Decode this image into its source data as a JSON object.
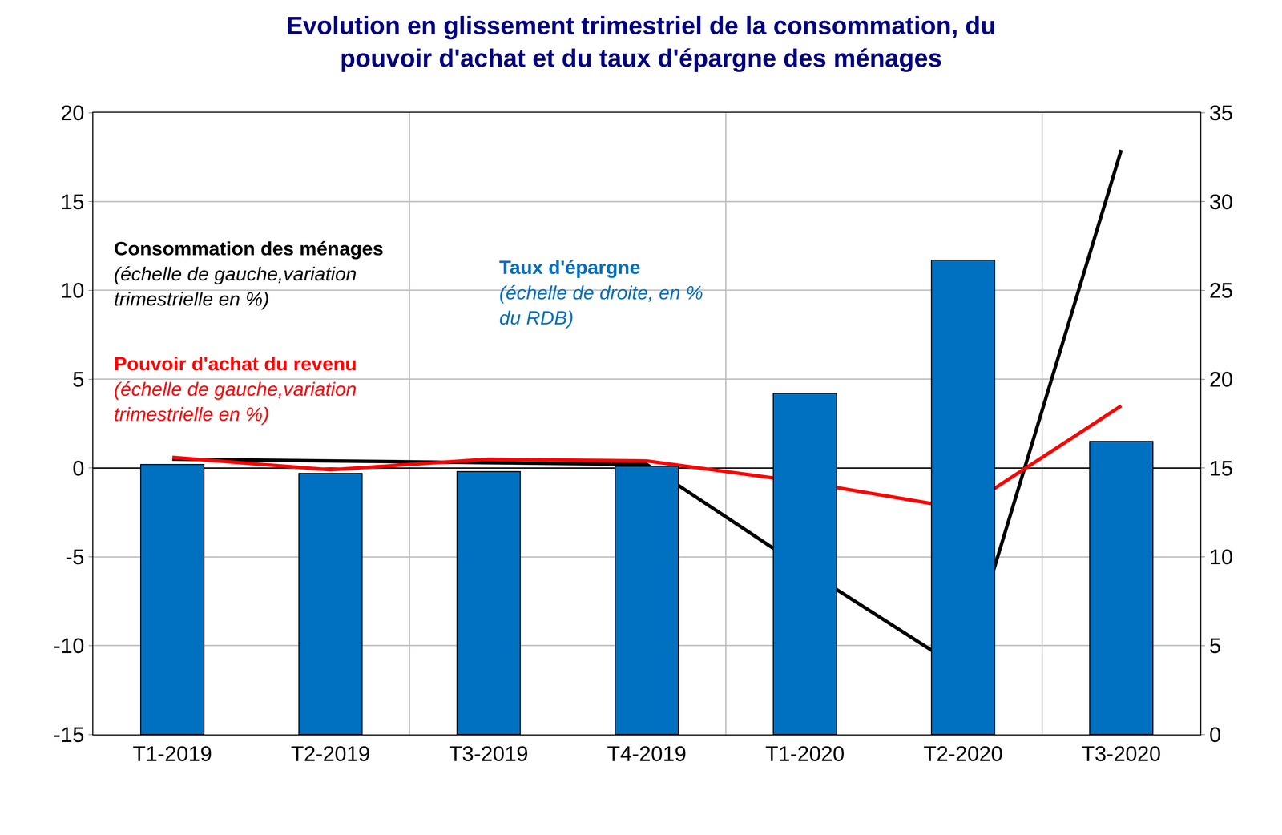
{
  "chart_data": {
    "type": "bar_line",
    "title": [
      "Evolution en glissement trimestriel de la consommation, du",
      "pouvoir d'achat et du taux d'épargne des ménages"
    ],
    "categories": [
      "T1-2019",
      "T2-2019",
      "T3-2019",
      "T4-2019",
      "T1-2020",
      "T2-2020",
      "T3-2020"
    ],
    "series": [
      {
        "name": "Taux d'épargne",
        "note": [
          "(échelle de droite, en %",
          "du RDB)"
        ],
        "type": "bar",
        "axis": "y2",
        "color": "#0070C0",
        "values": [
          15.2,
          14.7,
          14.8,
          15.1,
          19.2,
          26.7,
          16.5
        ]
      },
      {
        "name": "Consommation des ménages",
        "note": [
          "(échelle de gauche,variation",
          "trimestrielle en %)"
        ],
        "type": "line",
        "axis": "y",
        "color": "#000000",
        "values": [
          0.5,
          0.4,
          0.3,
          0.2,
          -5.7,
          -11.4,
          17.9
        ]
      },
      {
        "name": "Pouvoir d'achat du revenu",
        "note": [
          "(échelle de gauche,variation",
          "trimestrielle en %)"
        ],
        "type": "line",
        "axis": "y",
        "color": "#FF0000",
        "values": [
          0.6,
          -0.1,
          0.5,
          0.4,
          -0.8,
          -2.3,
          3.5
        ]
      }
    ],
    "ylim": [
      -15,
      20
    ],
    "yticks": [
      -15,
      -10,
      -5,
      0,
      5,
      10,
      15,
      20
    ],
    "y2lim": [
      0,
      35
    ],
    "y2ticks": [
      0,
      5,
      10,
      15,
      20,
      25,
      30,
      35
    ],
    "grid": true
  }
}
